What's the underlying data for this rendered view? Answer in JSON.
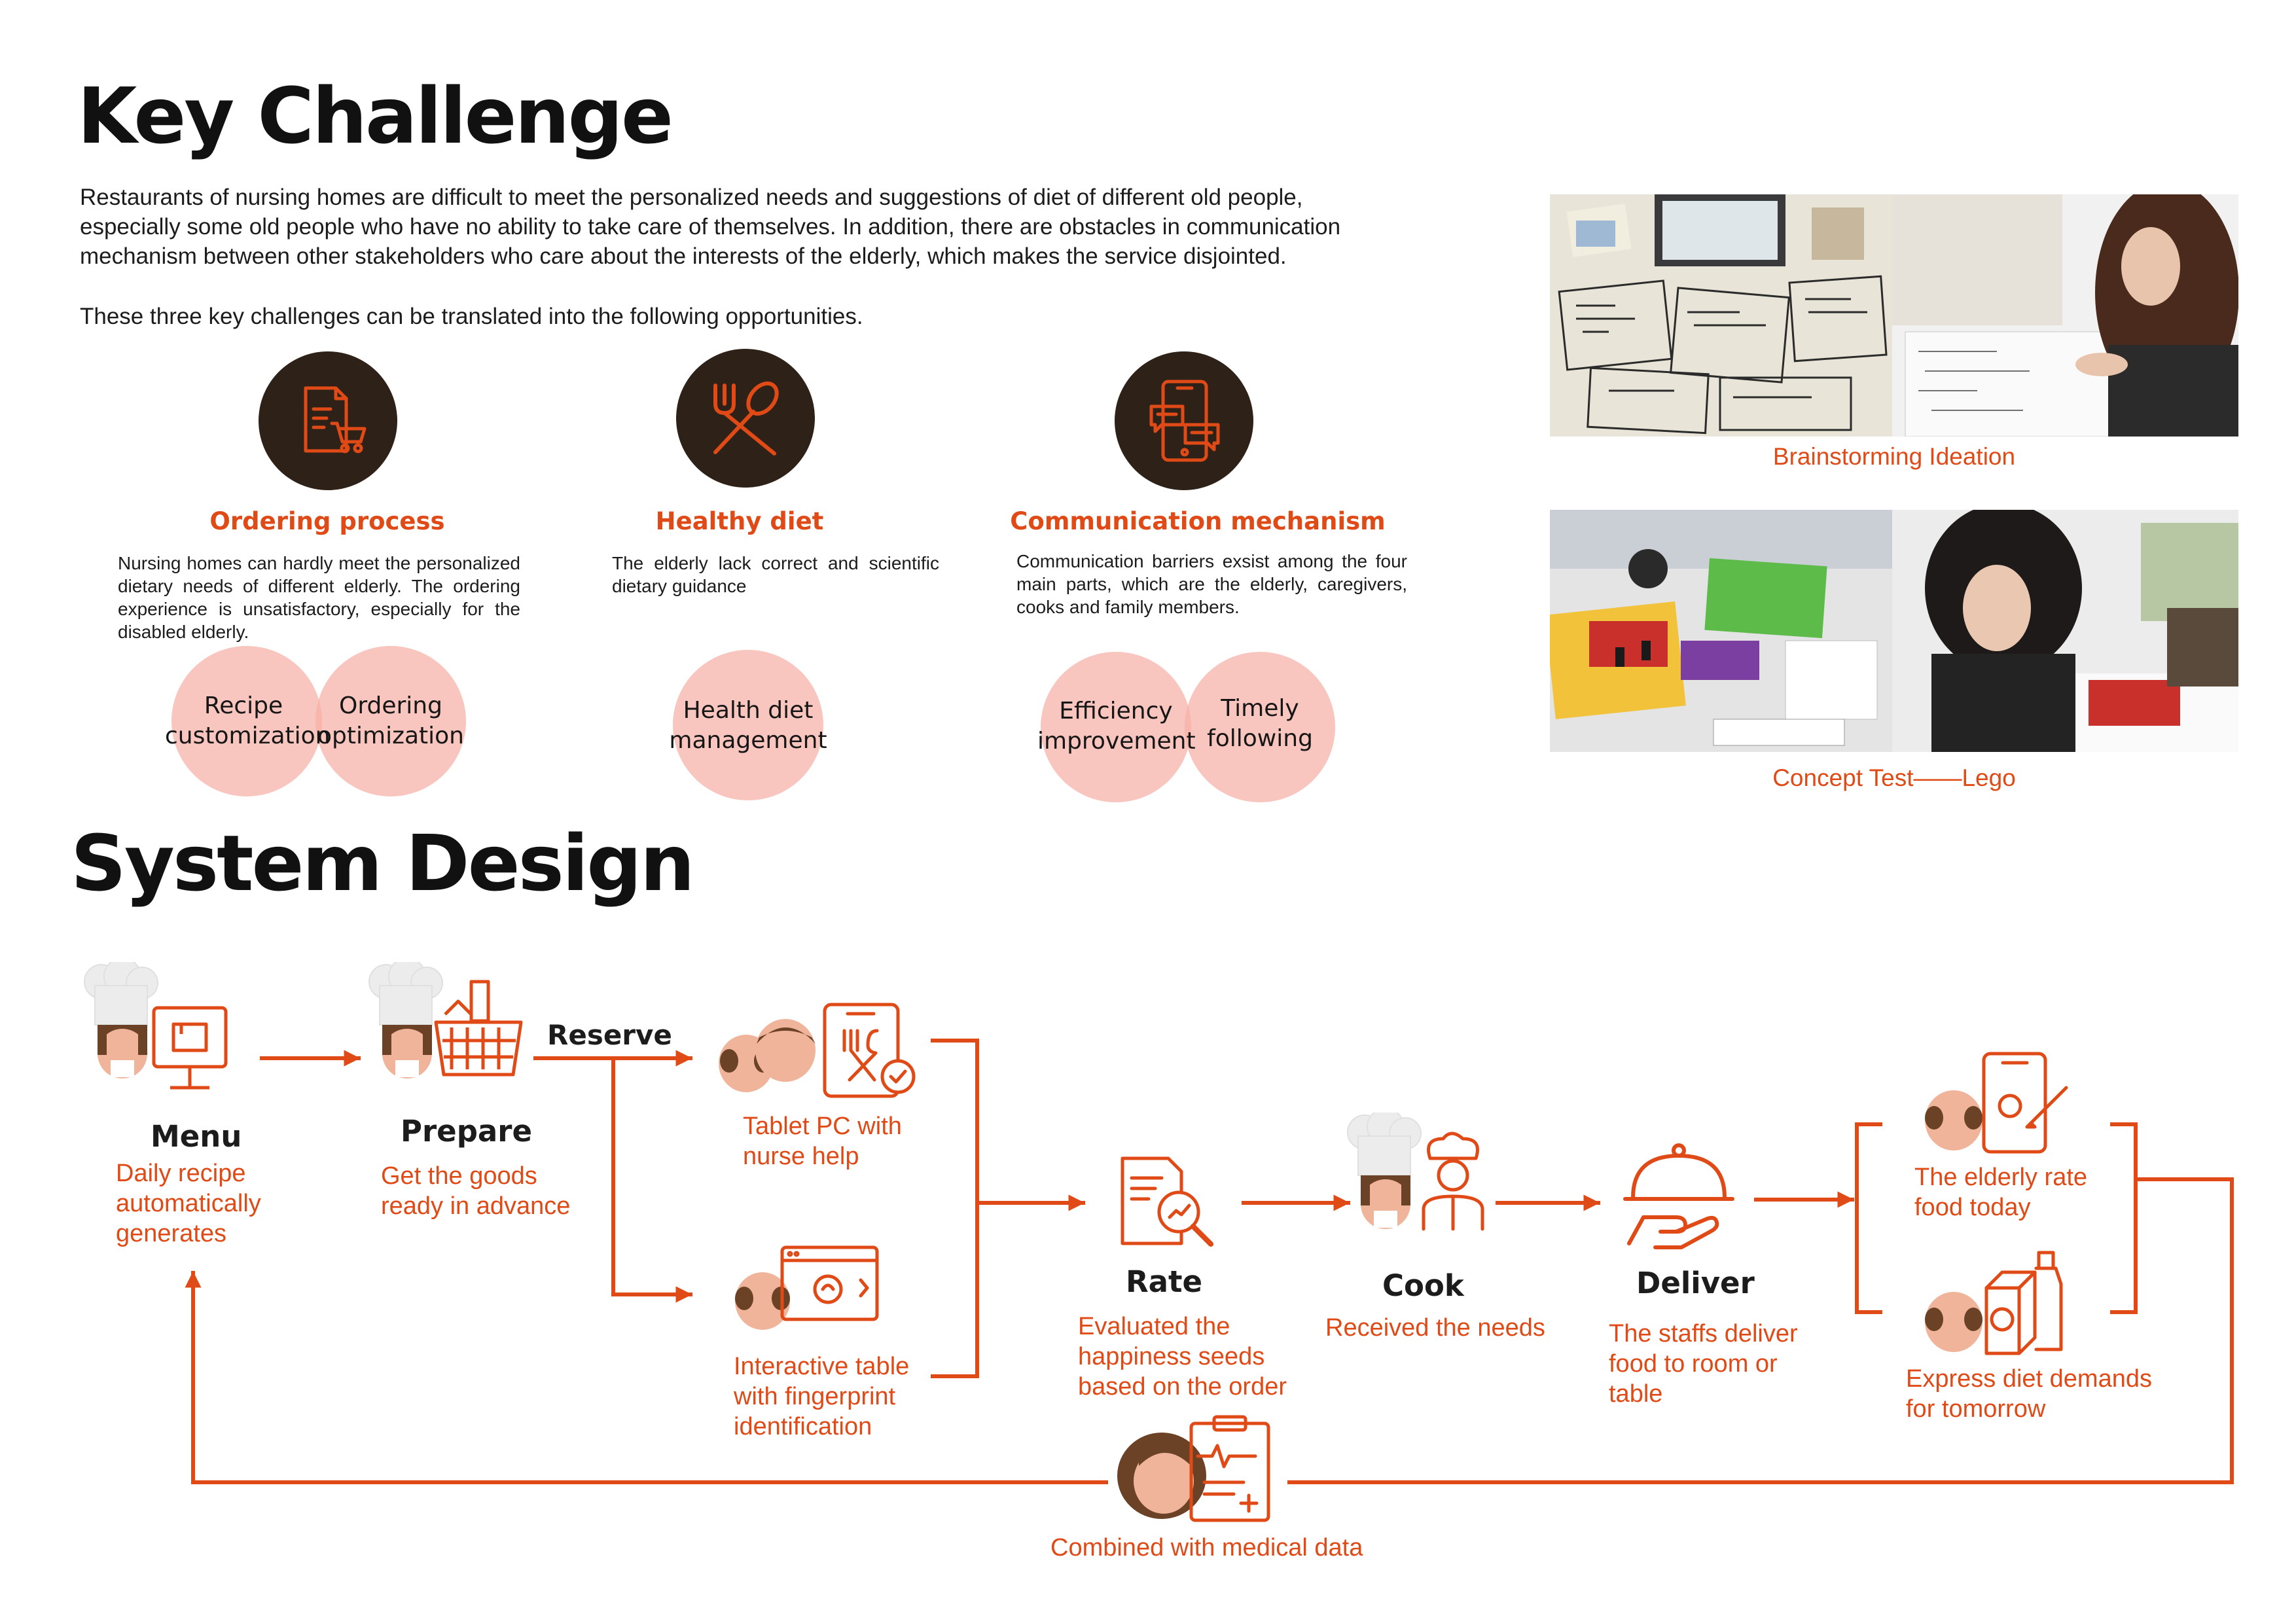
{
  "key_challenge": {
    "title": "Key Challenge",
    "paragraph": "Restaurants of nursing homes are difficult to meet the personalized needs and suggestions of diet of different old people, especially some old people who have no ability to take care of themselves. In addition, there are obstacles in communication mechanism between other stakeholders who care about the interests of the elderly, which makes the service disjointed.",
    "transition": "These three key challenges can be translated into the following opportunities."
  },
  "opportunities": [
    {
      "icon": "order-document-cart-icon",
      "title": "Ordering process",
      "description": "Nursing homes can hardly meet the personalized dietary needs of different elderly. The ordering experience is unsatisfactory, especially for the disabled elderly."
    },
    {
      "icon": "fork-spoon-icon",
      "title": "Healthy diet",
      "description": "The elderly lack correct and scientific dietary guidance"
    },
    {
      "icon": "phone-chat-icon",
      "title": "Communication mechanism",
      "description": "Communication barriers exsist among the four main parts, which are the elderly, caregivers, cooks and family members."
    }
  ],
  "solution_circles": {
    "recipe": "Recipe customization",
    "ordering": "Ordering optimization",
    "health": "Health diet management",
    "efficiency": "Efficiency improvement",
    "timely": "Timely following"
  },
  "photos": {
    "brainstorm_label": "Brainstorming Ideation",
    "lego_label": "Concept Test——Lego"
  },
  "system_design": {
    "title": "System Design",
    "reserve_label": "Reserve",
    "steps": {
      "menu": {
        "name": "Menu",
        "desc": "Daily recipe\nautomatically\ngenerates"
      },
      "prepare": {
        "name": "Prepare",
        "desc": "Get the goods\nready in advance"
      },
      "tablet": {
        "desc": "Tablet PC with\nnurse help"
      },
      "table": {
        "desc": "Interactive table\nwith fingerprint\nidentification"
      },
      "rate": {
        "name": "Rate",
        "desc": "Evaluated the\nhappiness seeds\nbased on the order"
      },
      "cook": {
        "name": "Cook",
        "desc": "Received the needs"
      },
      "deliver": {
        "name": "Deliver",
        "desc": "The staffs deliver\nfood to room or\ntable"
      },
      "elder_rate": {
        "desc": "The elderly rate\nfood today"
      },
      "express": {
        "desc": "Express diet demands\nfor tomorrow"
      },
      "medical": {
        "desc": "Combined with medical data"
      }
    }
  },
  "colors": {
    "accent": "#e04a16",
    "dark_circle": "#2e2118",
    "pink": "#f6b0a6",
    "text": "#1c1c1c"
  }
}
